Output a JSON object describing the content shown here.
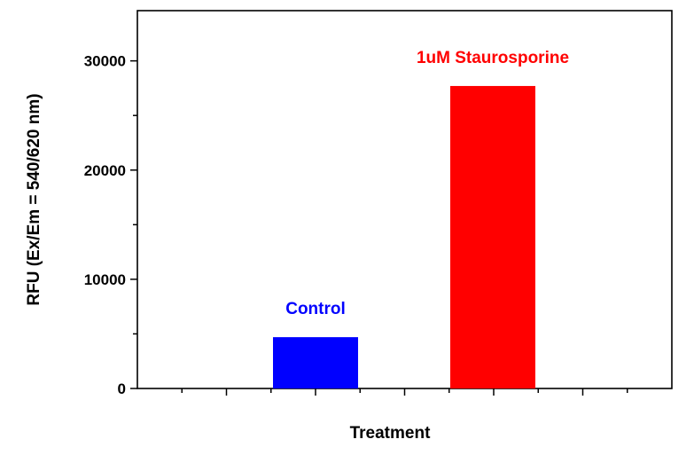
{
  "chart_data": {
    "type": "bar",
    "title": "",
    "xlabel": "Treatment",
    "ylabel": "RFU (Ex/Em = 540/620 nm)",
    "categories": [
      "Control",
      "1uM Staurosporine"
    ],
    "values": [
      4700,
      27700
    ],
    "colors": [
      "#0000ff",
      "#ff0000"
    ],
    "ylim": [
      0,
      34600
    ],
    "yticks": [
      0,
      10000,
      20000,
      30000
    ],
    "ytick_labels": [
      "0",
      "10000",
      "20000",
      "30000"
    ],
    "grid": false,
    "legend": "none"
  }
}
